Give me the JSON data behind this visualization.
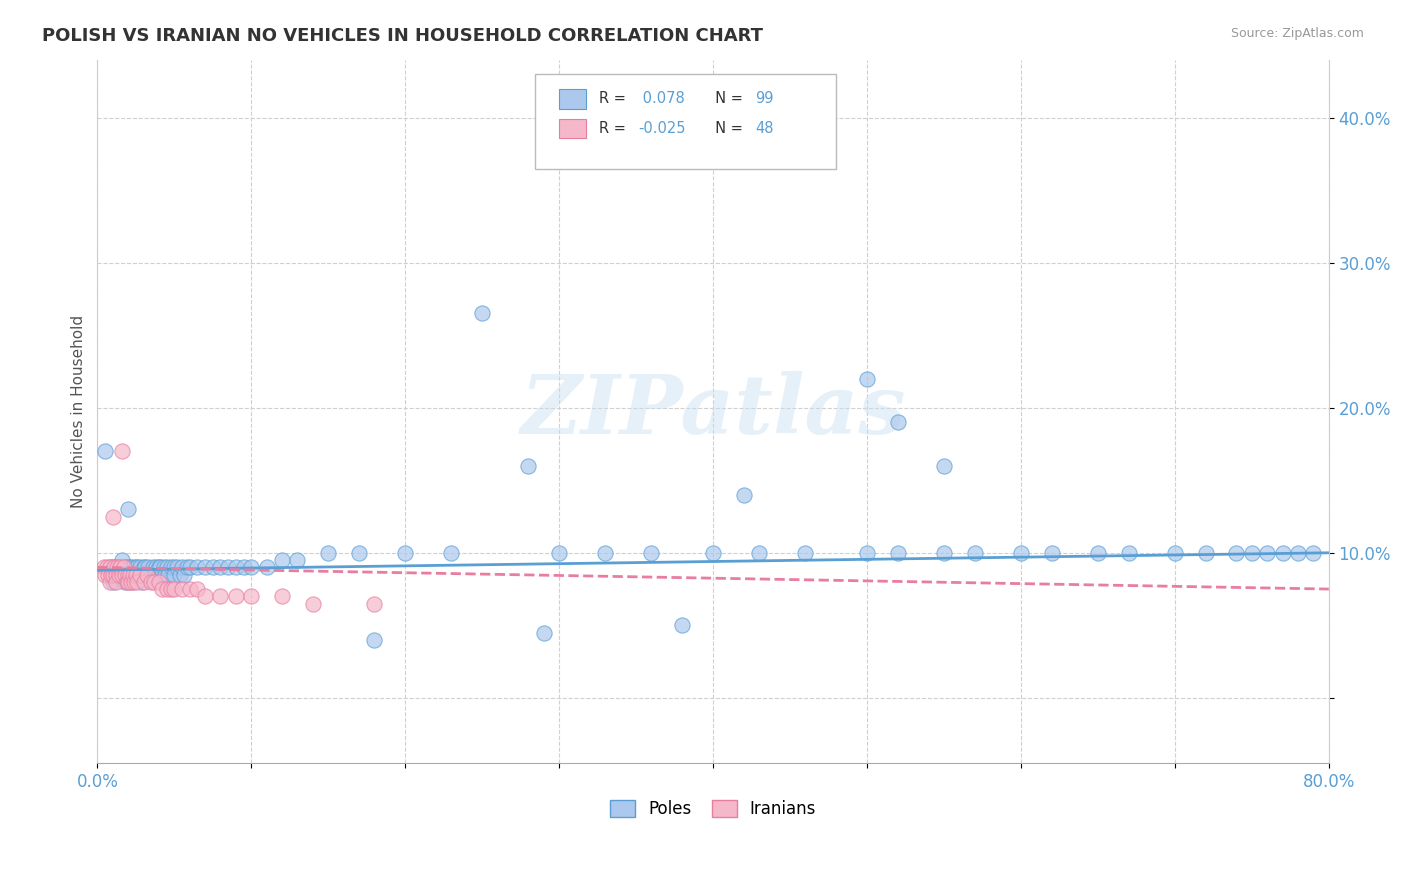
{
  "title": "POLISH VS IRANIAN NO VEHICLES IN HOUSEHOLD CORRELATION CHART",
  "source": "Source: ZipAtlas.com",
  "ylabel": "No Vehicles in Household",
  "ytick_labels": [
    "",
    "10.0%",
    "20.0%",
    "30.0%",
    "40.0%"
  ],
  "ytick_values": [
    0.0,
    0.1,
    0.2,
    0.3,
    0.4
  ],
  "xmin": 0.0,
  "xmax": 0.8,
  "ymin": -0.045,
  "ymax": 0.44,
  "poles_color": "#adc8ed",
  "iranians_color": "#f5b8cb",
  "poles_line_color": "#5a9fd4",
  "iranians_line_color": "#e87da0",
  "watermark": "ZIPatlas",
  "legend_poles_label": "Poles",
  "legend_iranians_label": "Iranians",
  "poles_x": [
    0.005,
    0.008,
    0.01,
    0.01,
    0.01,
    0.012,
    0.015,
    0.015,
    0.016,
    0.017,
    0.018,
    0.018,
    0.02,
    0.02,
    0.02,
    0.021,
    0.022,
    0.022,
    0.023,
    0.024,
    0.025,
    0.025,
    0.026,
    0.027,
    0.028,
    0.028,
    0.029,
    0.03,
    0.03,
    0.031,
    0.032,
    0.033,
    0.035,
    0.036,
    0.037,
    0.038,
    0.04,
    0.04,
    0.041,
    0.042,
    0.043,
    0.044,
    0.045,
    0.046,
    0.048,
    0.05,
    0.05,
    0.052,
    0.054,
    0.055,
    0.056,
    0.058,
    0.06,
    0.065,
    0.07,
    0.075,
    0.08,
    0.085,
    0.09,
    0.095,
    0.1,
    0.11,
    0.12,
    0.13,
    0.15,
    0.17,
    0.2,
    0.23,
    0.25,
    0.28,
    0.3,
    0.33,
    0.36,
    0.4,
    0.43,
    0.46,
    0.5,
    0.52,
    0.55,
    0.57,
    0.6,
    0.62,
    0.65,
    0.67,
    0.7,
    0.72,
    0.74,
    0.75,
    0.76,
    0.77,
    0.78,
    0.79,
    0.5,
    0.52,
    0.55,
    0.42,
    0.38,
    0.29,
    0.18
  ],
  "poles_y": [
    0.17,
    0.09,
    0.09,
    0.085,
    0.08,
    0.09,
    0.09,
    0.085,
    0.095,
    0.085,
    0.09,
    0.08,
    0.13,
    0.09,
    0.085,
    0.09,
    0.085,
    0.08,
    0.09,
    0.085,
    0.09,
    0.085,
    0.09,
    0.085,
    0.09,
    0.085,
    0.08,
    0.09,
    0.085,
    0.09,
    0.085,
    0.09,
    0.085,
    0.09,
    0.085,
    0.09,
    0.09,
    0.085,
    0.09,
    0.085,
    0.09,
    0.085,
    0.09,
    0.085,
    0.09,
    0.09,
    0.085,
    0.09,
    0.085,
    0.09,
    0.085,
    0.09,
    0.09,
    0.09,
    0.09,
    0.09,
    0.09,
    0.09,
    0.09,
    0.09,
    0.09,
    0.09,
    0.095,
    0.095,
    0.1,
    0.1,
    0.1,
    0.1,
    0.265,
    0.16,
    0.1,
    0.1,
    0.1,
    0.1,
    0.1,
    0.1,
    0.1,
    0.1,
    0.1,
    0.1,
    0.1,
    0.1,
    0.1,
    0.1,
    0.1,
    0.1,
    0.1,
    0.1,
    0.1,
    0.1,
    0.1,
    0.1,
    0.22,
    0.19,
    0.16,
    0.14,
    0.05,
    0.045,
    0.04
  ],
  "iranians_x": [
    0.004,
    0.005,
    0.006,
    0.007,
    0.008,
    0.008,
    0.009,
    0.01,
    0.01,
    0.011,
    0.012,
    0.012,
    0.013,
    0.014,
    0.015,
    0.016,
    0.016,
    0.017,
    0.018,
    0.019,
    0.02,
    0.02,
    0.021,
    0.022,
    0.023,
    0.024,
    0.025,
    0.026,
    0.028,
    0.03,
    0.032,
    0.035,
    0.037,
    0.04,
    0.042,
    0.045,
    0.048,
    0.05,
    0.055,
    0.06,
    0.065,
    0.07,
    0.08,
    0.09,
    0.1,
    0.12,
    0.14,
    0.18
  ],
  "iranians_y": [
    0.09,
    0.085,
    0.09,
    0.085,
    0.09,
    0.08,
    0.085,
    0.125,
    0.085,
    0.09,
    0.085,
    0.08,
    0.09,
    0.085,
    0.09,
    0.17,
    0.085,
    0.09,
    0.085,
    0.08,
    0.085,
    0.08,
    0.085,
    0.08,
    0.085,
    0.08,
    0.085,
    0.08,
    0.085,
    0.08,
    0.085,
    0.08,
    0.08,
    0.08,
    0.075,
    0.075,
    0.075,
    0.075,
    0.075,
    0.075,
    0.075,
    0.07,
    0.07,
    0.07,
    0.07,
    0.07,
    0.065,
    0.065
  ],
  "poles_trend_x0": 0.0,
  "poles_trend_y0": 0.088,
  "poles_trend_x1": 0.8,
  "poles_trend_y1": 0.1,
  "iran_trend_x0": 0.0,
  "iran_trend_y0": 0.09,
  "iran_trend_x1": 0.8,
  "iran_trend_y1": 0.075
}
